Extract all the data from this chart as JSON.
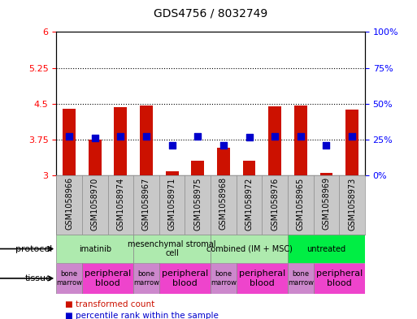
{
  "title": "GDS4756 / 8032749",
  "samples": [
    "GSM1058966",
    "GSM1058970",
    "GSM1058974",
    "GSM1058967",
    "GSM1058971",
    "GSM1058975",
    "GSM1058968",
    "GSM1058972",
    "GSM1058976",
    "GSM1058965",
    "GSM1058969",
    "GSM1058973"
  ],
  "red_values": [
    4.4,
    3.75,
    4.42,
    4.46,
    3.08,
    3.3,
    3.58,
    3.3,
    4.44,
    4.46,
    3.05,
    4.38
  ],
  "blue_values": [
    3.82,
    3.78,
    3.82,
    3.82,
    3.63,
    3.82,
    3.63,
    3.8,
    3.82,
    3.82,
    3.63,
    3.82
  ],
  "ylim_left": [
    3.0,
    6.0
  ],
  "ylim_right": [
    0,
    100
  ],
  "yticks_left": [
    3.0,
    3.75,
    4.5,
    5.25,
    6.0
  ],
  "yticks_right": [
    0,
    25,
    50,
    75,
    100
  ],
  "ytick_labels_left": [
    "3",
    "3.75",
    "4.5",
    "5.25",
    "6"
  ],
  "ytick_labels_right": [
    "0%",
    "25%",
    "50%",
    "75%",
    "100%"
  ],
  "hlines": [
    3.75,
    4.5,
    5.25
  ],
  "protocols": [
    {
      "label": "imatinib",
      "start": 0,
      "end": 3,
      "color": "#aeeaae"
    },
    {
      "label": "mesenchymal stromal\ncell",
      "start": 3,
      "end": 6,
      "color": "#aeeaae"
    },
    {
      "label": "combined (IM + MSC)",
      "start": 6,
      "end": 9,
      "color": "#aeeaae"
    },
    {
      "label": "untreated",
      "start": 9,
      "end": 12,
      "color": "#00ee44"
    }
  ],
  "tissues": [
    {
      "label": "bone\nmarrow",
      "start": 0,
      "end": 1,
      "color": "#cc88cc"
    },
    {
      "label": "peripheral\nblood",
      "start": 1,
      "end": 3,
      "color": "#ee44cc"
    },
    {
      "label": "bone\nmarrow",
      "start": 3,
      "end": 4,
      "color": "#cc88cc"
    },
    {
      "label": "peripheral\nblood",
      "start": 4,
      "end": 6,
      "color": "#ee44cc"
    },
    {
      "label": "bone\nmarrow",
      "start": 6,
      "end": 7,
      "color": "#cc88cc"
    },
    {
      "label": "peripheral\nblood",
      "start": 7,
      "end": 9,
      "color": "#ee44cc"
    },
    {
      "label": "bone\nmarrow",
      "start": 9,
      "end": 10,
      "color": "#cc88cc"
    },
    {
      "label": "peripheral\nblood",
      "start": 10,
      "end": 12,
      "color": "#ee44cc"
    }
  ],
  "bar_color": "#CC1100",
  "dot_color": "#0000CC",
  "bar_bottom": 3.0,
  "bar_width": 0.5,
  "dot_size": 35,
  "legend_items": [
    {
      "color": "#CC1100",
      "label": "transformed count"
    },
    {
      "color": "#0000CC",
      "label": "percentile rank within the sample"
    }
  ],
  "protocol_label": "protocol",
  "tissue_label": "tissue",
  "bg_color": "#C8C8C8",
  "border_color": "#888888"
}
